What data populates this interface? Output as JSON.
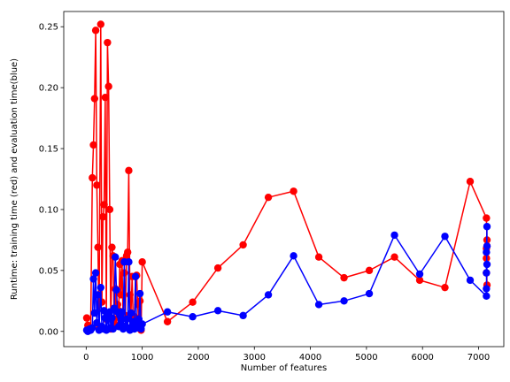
{
  "chart_data": {
    "type": "line",
    "title": "",
    "xlabel": "Number of features",
    "ylabel": "Runtime: training time (red) and evaluation time(blue)",
    "xlim": [
      -400,
      7450
    ],
    "ylim": [
      -0.0125,
      0.2625
    ],
    "xticks": [
      0,
      1000,
      2000,
      3000,
      4000,
      5000,
      6000,
      7000
    ],
    "xtick_labels": [
      "0",
      "1000",
      "2000",
      "3000",
      "4000",
      "5000",
      "6000",
      "7000"
    ],
    "yticks": [
      0.0,
      0.05,
      0.1,
      0.15,
      0.2,
      0.25
    ],
    "ytick_labels": [
      "0.00",
      "0.05",
      "0.10",
      "0.15",
      "0.20",
      "0.25"
    ],
    "grid": false,
    "legend": "none",
    "markers": "circle",
    "series": [
      {
        "color": "#ff0000",
        "x": [
          10,
          30,
          60,
          80,
          110,
          130,
          150,
          170,
          190,
          210,
          230,
          260,
          280,
          300,
          320,
          340,
          360,
          380,
          400,
          420,
          440,
          460,
          480,
          500,
          520,
          540,
          560,
          580,
          600,
          620,
          640,
          660,
          680,
          700,
          720,
          740,
          760,
          780,
          800,
          820,
          840,
          860,
          880,
          900,
          920,
          940,
          960,
          980,
          1000,
          1450,
          1900,
          2350,
          2800,
          3250,
          3700,
          4150,
          4600,
          5050,
          5500,
          5950,
          6400,
          6850,
          7140,
          7150,
          7140,
          7150,
          7140,
          7150,
          7140
        ],
        "y": [
          0.011,
          0.005,
          0.003,
          0.002,
          0.126,
          0.153,
          0.191,
          0.247,
          0.12,
          0.069,
          0.002,
          0.252,
          0.024,
          0.094,
          0.104,
          0.192,
          0.01,
          0.237,
          0.201,
          0.1,
          0.002,
          0.069,
          0.062,
          0.01,
          0.035,
          0.005,
          0.022,
          0.017,
          0.055,
          0.03,
          0.058,
          0.004,
          0.048,
          0.013,
          0.062,
          0.065,
          0.132,
          0.03,
          0.015,
          0.045,
          0.005,
          0.012,
          0.045,
          0.046,
          0.022,
          0.003,
          0.025,
          0.001,
          0.057,
          0.008,
          0.024,
          0.052,
          0.071,
          0.11,
          0.115,
          0.061,
          0.044,
          0.05,
          0.061,
          0.042,
          0.036,
          0.123,
          0.093,
          0.075,
          0.06,
          0.07,
          0.048,
          0.038,
          0.068
        ]
      },
      {
        "color": "#0000ff",
        "x": [
          10,
          30,
          60,
          80,
          110,
          130,
          150,
          170,
          190,
          210,
          230,
          260,
          280,
          300,
          320,
          340,
          360,
          380,
          400,
          420,
          440,
          460,
          480,
          500,
          520,
          540,
          560,
          580,
          600,
          620,
          640,
          660,
          680,
          700,
          720,
          740,
          760,
          780,
          800,
          820,
          840,
          860,
          880,
          900,
          920,
          940,
          960,
          980,
          1000,
          1450,
          1900,
          2350,
          2800,
          3250,
          3700,
          4150,
          4600,
          5050,
          5500,
          5950,
          6400,
          6850,
          7140,
          7150,
          7140,
          7150,
          7140,
          7150,
          7140
        ],
        "y": [
          0.001,
          0.0,
          0.002,
          0.001,
          0.003,
          0.043,
          0.015,
          0.048,
          0.007,
          0.03,
          0.001,
          0.036,
          0.004,
          0.002,
          0.017,
          0.011,
          0.001,
          0.014,
          0.002,
          0.016,
          0.003,
          0.011,
          0.002,
          0.019,
          0.061,
          0.034,
          0.016,
          0.004,
          0.013,
          0.006,
          0.016,
          0.002,
          0.057,
          0.004,
          0.01,
          0.003,
          0.057,
          0.001,
          0.015,
          0.003,
          0.008,
          0.002,
          0.045,
          0.006,
          0.003,
          0.01,
          0.031,
          0.002,
          0.006,
          0.016,
          0.012,
          0.017,
          0.013,
          0.03,
          0.062,
          0.022,
          0.025,
          0.031,
          0.079,
          0.047,
          0.078,
          0.042,
          0.029,
          0.086,
          0.065,
          0.07,
          0.048,
          0.055,
          0.035
        ]
      }
    ]
  }
}
